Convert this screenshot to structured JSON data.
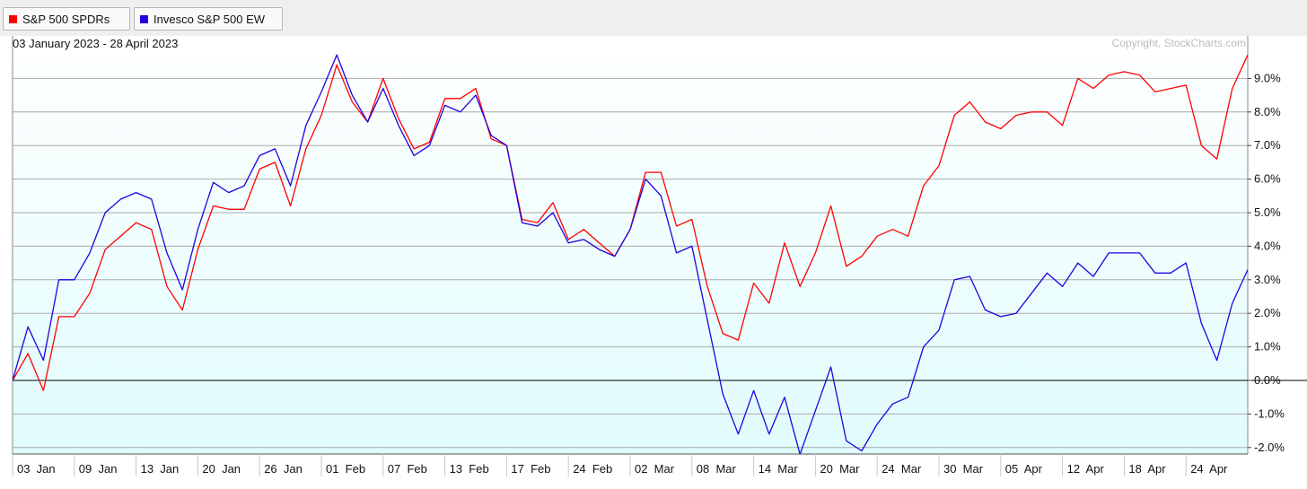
{
  "date_range": "03 January 2023 - 28 April 2023",
  "copyright": "Copyright, StockCharts.com",
  "legend": [
    {
      "label": "S&P 500 SPDRs",
      "color": "#ff0000"
    },
    {
      "label": "Invesco S&P 500 EW",
      "color": "#2200dd"
    }
  ],
  "colors": {
    "plot_gradient_top": "#ffffff",
    "plot_gradient_bottom": "#e0fcfd",
    "grid": "#a9a9a9",
    "zero_line": "#000000"
  },
  "chart_data": {
    "type": "line",
    "ylim": [
      -2.2,
      9.8
    ],
    "y_ticks": [
      {
        "value": 9,
        "label": "9.0%"
      },
      {
        "value": 8,
        "label": "8.0%"
      },
      {
        "value": 7,
        "label": "7.0%"
      },
      {
        "value": 6,
        "label": "6.0%"
      },
      {
        "value": 5,
        "label": "5.0%"
      },
      {
        "value": 4,
        "label": "4.0%"
      },
      {
        "value": 3,
        "label": "3.0%"
      },
      {
        "value": 2,
        "label": "2.0%"
      },
      {
        "value": 1,
        "label": "1.0%"
      },
      {
        "value": 0,
        "label": "0.0%"
      },
      {
        "value": -1,
        "label": "-1.0%"
      },
      {
        "value": -2,
        "label": "-2.0%"
      }
    ],
    "x_ticks": [
      {
        "index": 0,
        "label": "03  Jan"
      },
      {
        "index": 4,
        "label": "09  Jan"
      },
      {
        "index": 8,
        "label": "13  Jan"
      },
      {
        "index": 12,
        "label": "20  Jan"
      },
      {
        "index": 16,
        "label": "26  Jan"
      },
      {
        "index": 20,
        "label": "01  Feb"
      },
      {
        "index": 24,
        "label": "07  Feb"
      },
      {
        "index": 28,
        "label": "13  Feb"
      },
      {
        "index": 32,
        "label": "17  Feb"
      },
      {
        "index": 36,
        "label": "24  Feb"
      },
      {
        "index": 40,
        "label": "02  Mar"
      },
      {
        "index": 44,
        "label": "08  Mar"
      },
      {
        "index": 48,
        "label": "14  Mar"
      },
      {
        "index": 52,
        "label": "20  Mar"
      },
      {
        "index": 56,
        "label": "24  Mar"
      },
      {
        "index": 60,
        "label": "30  Mar"
      },
      {
        "index": 64,
        "label": "05  Apr"
      },
      {
        "index": 68,
        "label": "12  Apr"
      },
      {
        "index": 72,
        "label": "18  Apr"
      },
      {
        "index": 76,
        "label": "24  Apr"
      }
    ],
    "series": [
      {
        "name": "S&P 500 SPDRs",
        "color": "#ff0000",
        "values": [
          0.0,
          0.8,
          -0.3,
          1.9,
          1.9,
          2.6,
          3.9,
          4.3,
          4.7,
          4.5,
          2.8,
          2.1,
          3.9,
          5.2,
          5.1,
          5.1,
          6.3,
          6.5,
          5.2,
          6.9,
          7.9,
          9.4,
          8.3,
          7.7,
          9.0,
          7.8,
          6.9,
          7.1,
          8.4,
          8.4,
          8.7,
          7.2,
          7.0,
          4.8,
          4.7,
          5.3,
          4.2,
          4.5,
          4.1,
          3.7,
          4.5,
          6.2,
          6.2,
          4.6,
          4.8,
          2.8,
          1.4,
          1.2,
          2.9,
          2.3,
          4.1,
          2.8,
          3.8,
          5.2,
          3.4,
          3.7,
          4.3,
          4.5,
          4.3,
          5.8,
          6.4,
          7.9,
          8.3,
          7.7,
          7.5,
          7.9,
          8.0,
          8.0,
          7.6,
          9.0,
          8.7,
          9.1,
          9.2,
          9.1,
          8.6,
          8.7,
          8.8,
          7.0,
          6.6,
          8.7,
          9.7
        ]
      },
      {
        "name": "Invesco S&P 500 EW",
        "color": "#2200dd",
        "values": [
          0.0,
          1.6,
          0.6,
          3.0,
          3.0,
          3.8,
          5.0,
          5.4,
          5.6,
          5.4,
          3.8,
          2.7,
          4.5,
          5.9,
          5.6,
          5.8,
          6.7,
          6.9,
          5.8,
          7.6,
          8.6,
          9.7,
          8.5,
          7.7,
          8.7,
          7.6,
          6.7,
          7.0,
          8.2,
          8.0,
          8.5,
          7.3,
          7.0,
          4.7,
          4.6,
          5.0,
          4.1,
          4.2,
          3.9,
          3.7,
          4.5,
          6.0,
          5.5,
          3.8,
          4.0,
          1.8,
          -0.4,
          -1.6,
          -0.3,
          -1.6,
          -0.5,
          -2.2,
          -0.9,
          0.4,
          -1.8,
          -2.1,
          -1.3,
          -0.7,
          -0.5,
          1.0,
          1.5,
          3.0,
          3.1,
          2.1,
          1.9,
          2.0,
          2.6,
          3.2,
          2.8,
          3.5,
          3.1,
          3.8,
          3.8,
          3.8,
          3.2,
          3.2,
          3.5,
          1.7,
          0.6,
          2.3,
          3.3
        ]
      }
    ]
  }
}
